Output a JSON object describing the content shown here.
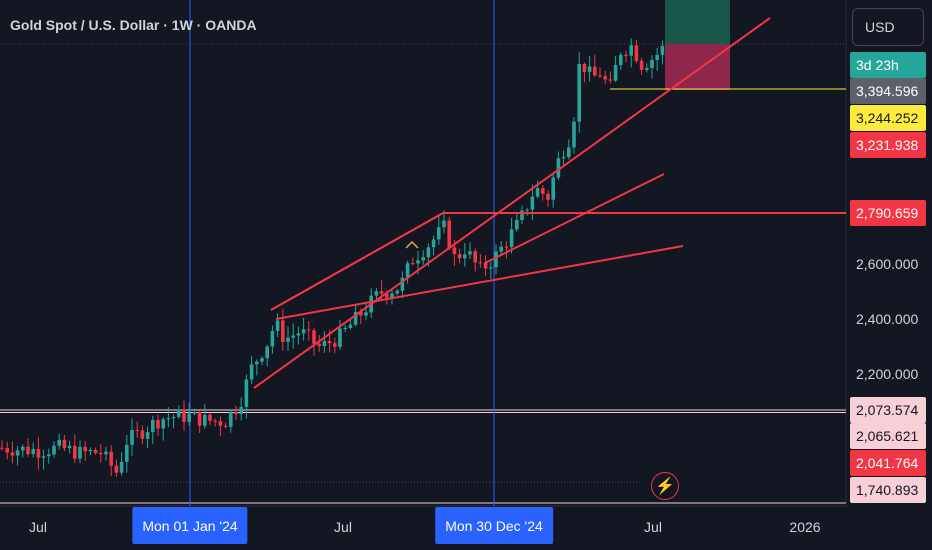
{
  "header": {
    "title": "Gold Spot / U.S. Dollar · 1W · OANDA"
  },
  "currency_button": {
    "label": "USD"
  },
  "price_labels": [
    {
      "text": "3d 23h",
      "bg": "#26a69a",
      "fg": "#ffffff"
    },
    {
      "text": "3,394.596",
      "bg": "#5d606b",
      "fg": "#ffffff"
    },
    {
      "text": "3,244.252",
      "bg": "#ffeb3b",
      "fg": "#131722"
    },
    {
      "text": "3,231.938",
      "bg": "#f23645",
      "fg": "#ffffff"
    },
    {
      "text": "2,790.659",
      "bg": "#f23645",
      "fg": "#ffffff"
    },
    {
      "text": "2,073.574",
      "bg": "#f8cfd6",
      "fg": "#131722"
    },
    {
      "text": "2,065.621",
      "bg": "#f8cfd6",
      "fg": "#131722"
    },
    {
      "text": "2,041.764",
      "bg": "#f23645",
      "fg": "#ffffff"
    },
    {
      "text": "1,740.893",
      "bg": "#f8cfd6",
      "fg": "#131722"
    }
  ],
  "y_ticks": [
    "2,600.000",
    "2,400.000",
    "2,200.000"
  ],
  "x_ticks": [
    "Jul",
    "Jul",
    "Jul",
    "2026"
  ],
  "x_highlights": [
    "Mon 01 Jan '24",
    "Mon 30 Dec '24"
  ],
  "icons": {
    "alert": "lightning-icon"
  },
  "colors": {
    "up": "#26a69a",
    "down": "#f23645",
    "background": "#131722",
    "crosshair": "#2962ff",
    "trendline": "#f23645",
    "target_zone": "#1b5e50",
    "stop_zone": "#9c2950"
  },
  "chart_data": {
    "type": "candlestick",
    "symbol": "XAUUSD",
    "timeframe": "1W",
    "ylim": [
      1740,
      3500
    ],
    "date_range": [
      "2023-05",
      "2025-07"
    ],
    "close_approx": {
      "2023-07": 1950,
      "2023-10": 1980,
      "2024-01": 2045,
      "2024-04": 2330,
      "2024-07": 2400,
      "2024-10": 2735,
      "2024-12": 2625,
      "2025-02": 2880,
      "2025-04": 3320,
      "2025-06": 3350,
      "2025-07": 3394.596
    },
    "horizontal_levels": [
      3394.596,
      3244.252,
      3231.938,
      2790.659,
      2073.574,
      2065.621,
      2041.764,
      1740.893
    ],
    "vertical_markers": [
      "2024-01-01",
      "2024-12-30"
    ],
    "drawings": [
      "ascending channel",
      "support trendline",
      "long position (target and stop zones)"
    ]
  }
}
